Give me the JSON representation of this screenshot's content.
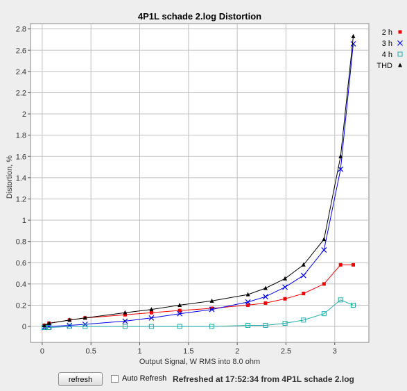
{
  "window": {
    "refresh_label": "refresh",
    "auto_refresh_label": "Auto Refresh",
    "auto_refresh_checked": false,
    "status": "Refreshed at 17:52:34 from 4P1L schade 2.log"
  },
  "chart_data": {
    "type": "line",
    "title": "4P1L schade 2.log Distortion",
    "xlabel": "Output Signal, W RMS into 8.0 ohm",
    "ylabel": "Distortion, %",
    "xlim": [
      -0.12,
      3.35
    ],
    "ylim": [
      -0.15,
      2.85
    ],
    "x_ticks": [
      "0",
      "0.5",
      "1",
      "1.5",
      "2",
      "2.5",
      "3"
    ],
    "y_ticks": [
      "0",
      "0.2",
      "0.4",
      "0.6",
      "0.8",
      "1",
      "1.2",
      "1.4",
      "1.6",
      "1.8",
      "2",
      "2.2",
      "2.4",
      "2.6",
      "2.8"
    ],
    "grid": true,
    "legend_position": "right",
    "series": [
      {
        "name": "2 h",
        "color": "#ee0000",
        "marker": "square-filled",
        "x": [
          0.02,
          0.07,
          0.28,
          0.44,
          0.85,
          1.12,
          1.41,
          1.74,
          2.11,
          2.29,
          2.49,
          2.68,
          2.89,
          3.06,
          3.19
        ],
        "y": [
          0.01,
          0.03,
          0.06,
          0.08,
          0.11,
          0.13,
          0.15,
          0.17,
          0.2,
          0.22,
          0.26,
          0.31,
          0.4,
          0.58,
          0.58
        ]
      },
      {
        "name": "3 h",
        "color": "#0000ee",
        "marker": "x",
        "x": [
          0.02,
          0.07,
          0.28,
          0.44,
          0.85,
          1.12,
          1.41,
          1.74,
          2.11,
          2.29,
          2.49,
          2.68,
          2.89,
          3.06,
          3.19
        ],
        "y": [
          -0.01,
          0.0,
          0.01,
          0.02,
          0.05,
          0.08,
          0.12,
          0.16,
          0.23,
          0.28,
          0.37,
          0.48,
          0.72,
          1.48,
          2.66
        ]
      },
      {
        "name": "4 h",
        "color": "#22aaaa",
        "marker": "square-open",
        "x": [
          0.02,
          0.07,
          0.28,
          0.44,
          0.85,
          1.12,
          1.41,
          1.74,
          2.11,
          2.29,
          2.49,
          2.68,
          2.89,
          3.06,
          3.19
        ],
        "y": [
          -0.01,
          -0.01,
          0.0,
          0.0,
          0.0,
          0.0,
          0.0,
          0.0,
          0.01,
          0.01,
          0.03,
          0.06,
          0.12,
          0.25,
          0.2
        ]
      },
      {
        "name": "THD",
        "color": "#000000",
        "marker": "triangle-filled",
        "x": [
          0.02,
          0.07,
          0.28,
          0.44,
          0.85,
          1.12,
          1.41,
          1.74,
          2.11,
          2.29,
          2.49,
          2.68,
          2.89,
          3.06,
          3.19
        ],
        "y": [
          0.01,
          0.03,
          0.06,
          0.08,
          0.13,
          0.16,
          0.2,
          0.24,
          0.3,
          0.36,
          0.45,
          0.58,
          0.82,
          1.6,
          2.73
        ]
      }
    ]
  }
}
